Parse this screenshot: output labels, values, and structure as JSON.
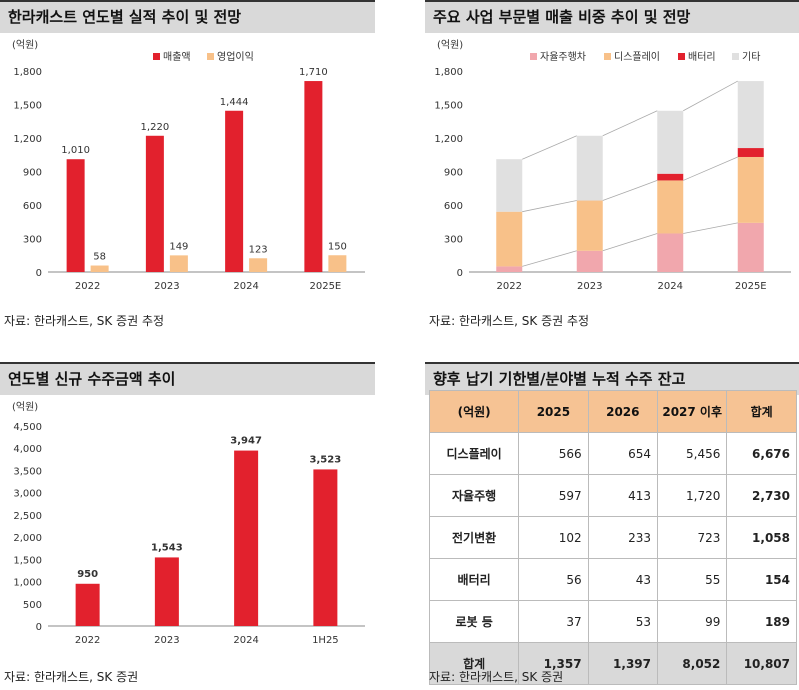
{
  "panels": {
    "p1": {
      "title": "한라캐스트 연도별 실적 추이 및 전망",
      "source": "자료: 한라캐스트, SK 증권"
    },
    "p2": {
      "title": "주요 사업 부문별 매출 비중 추이 및 전망",
      "source": "자료: 한라캐스트, SK 증권 추정"
    },
    "p3": {
      "title": "연도별 신규 수주금액 추이",
      "source": "자료: 한라캐스트, SK 증권"
    },
    "p4": {
      "title": "향후 납기 기한별/분야별 누적 수주 잔고",
      "source": "자료: 한라캐스트, SK 증권"
    }
  },
  "p1_source_full": "자료: 한라캐스트, SK 증권 추정",
  "colors": {
    "red": "#e2212d",
    "orange": "#f8c189",
    "pink": "#f1a7ad",
    "gray": "#e0e0e0",
    "header": "#f6c394"
  },
  "chart_data": [
    {
      "type": "bar",
      "unit": "(억원)",
      "categories": [
        "2022",
        "2023",
        "2024",
        "2025E"
      ],
      "series": [
        {
          "name": "매출액",
          "values": [
            1010,
            1220,
            1444,
            1710
          ],
          "color": "#e2212d"
        },
        {
          "name": "영업이익",
          "values": [
            58,
            149,
            123,
            150
          ],
          "color": "#f8c189"
        }
      ],
      "ylim": [
        0,
        1800
      ],
      "yticks": [
        "0",
        "300",
        "600",
        "900",
        "1,200",
        "1,500",
        "1,800"
      ],
      "labels": [
        [
          "1,010",
          "1,220",
          "1,444",
          "1,710"
        ],
        [
          "58",
          "149",
          "123",
          "150"
        ]
      ],
      "legend": "top"
    },
    {
      "type": "bar",
      "stacked": true,
      "unit": "(억원)",
      "categories": [
        "2022",
        "2023",
        "2024",
        "2025E"
      ],
      "series": [
        {
          "name": "자율주행차",
          "values": [
            50,
            190,
            345,
            440
          ],
          "color": "#f1a7ad"
        },
        {
          "name": "디스플레이",
          "values": [
            490,
            450,
            475,
            590
          ],
          "color": "#f8c189"
        },
        {
          "name": "배터리",
          "values": [
            0,
            0,
            60,
            80
          ],
          "color": "#e2212d"
        },
        {
          "name": "기타",
          "values": [
            470,
            580,
            564,
            600
          ],
          "color": "#e0e0e0"
        }
      ],
      "ylim": [
        0,
        1800
      ],
      "yticks": [
        "0",
        "300",
        "600",
        "900",
        "1,200",
        "1,500",
        "1,800"
      ],
      "legend": "top"
    },
    {
      "type": "bar",
      "unit": "(억원)",
      "categories": [
        "2022",
        "2023",
        "2024",
        "1H25"
      ],
      "series": [
        {
          "values": [
            950,
            1543,
            3947,
            3523
          ],
          "color": "#e2212d"
        }
      ],
      "labels": [
        "950",
        "1,543",
        "3,947",
        "3,523"
      ],
      "ylim": [
        0,
        4500
      ],
      "yticks": [
        "0",
        "500",
        "1,000",
        "1,500",
        "2,000",
        "2,500",
        "3,000",
        "3,500",
        "4,000",
        "4,500"
      ]
    },
    {
      "type": "table",
      "columns": [
        "(억원)",
        "2025",
        "2026",
        "2027 이후",
        "합계"
      ],
      "rows": [
        [
          "디스플레이",
          "566",
          "654",
          "5,456",
          "6,676"
        ],
        [
          "자율주행",
          "597",
          "413",
          "1,720",
          "2,730"
        ],
        [
          "전기변환",
          "102",
          "233",
          "723",
          "1,058"
        ],
        [
          "배터리",
          "56",
          "43",
          "55",
          "154"
        ],
        [
          "로봇 등",
          "37",
          "53",
          "99",
          "189"
        ]
      ],
      "total": [
        "합계",
        "1,357",
        "1,397",
        "8,052",
        "10,807"
      ]
    }
  ]
}
